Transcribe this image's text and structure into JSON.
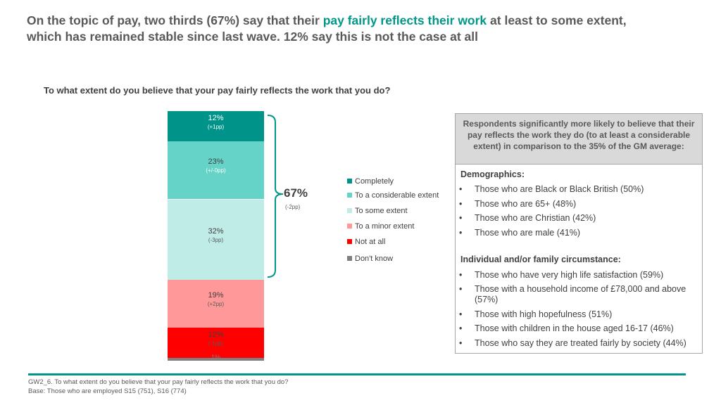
{
  "headline": {
    "part1": "On the topic of pay, two thirds (67%) say that their ",
    "highlight": "pay fairly reflects their work",
    "part2": " at least to some extent,",
    "line2": "which has remained stable since last wave. 12% say this is not the case at all"
  },
  "colors": {
    "completely": "#00938a",
    "considerable": "#66d3c9",
    "some": "#bfece7",
    "minor": "#ff9999",
    "not_at_all": "#ff0000",
    "dont_know": "#7f7f7f",
    "accent": "#009688"
  },
  "chart_data": {
    "type": "bar",
    "stacked": true,
    "title": "To what extent do you believe that your pay fairly reflects the work that you do?",
    "categories": [
      "Completely",
      "To a considerable extent",
      "To some extent",
      "To a minor extent",
      "Not at all",
      "Don't know"
    ],
    "values": [
      12,
      23,
      32,
      19,
      12,
      1
    ],
    "labels": [
      "12%",
      "23%",
      "32%",
      "19%",
      "12%",
      "1%"
    ],
    "changes": [
      "(+1pp)",
      "(+/-0pp)",
      "(-3pp)",
      "(+2pp)",
      "(-1pp)",
      ""
    ],
    "net": {
      "value": "67%",
      "change": "(-2pp)"
    },
    "ylim": [
      0,
      100
    ],
    "legend_position": "right"
  },
  "legend": [
    "Completely",
    "To a considerable extent",
    "To some extent",
    "To a minor extent",
    "Not at all",
    "Don't know"
  ],
  "panel": {
    "header": "Respondents significantly more likely to believe that their pay reflects the work they do (to at least a considerable extent) in comparison to the 35% of the GM average:",
    "demographics_title": "Demographics:",
    "demographics": [
      "Those who are Black or Black British (50%)",
      "Those who are 65+ (48%)",
      "Those who are Christian (42%)",
      "Those who are male (41%)"
    ],
    "circumstance_title": "Individual and/or family circumstance:",
    "circumstance": [
      "Those who have very high life satisfaction (59%)",
      "Those with a household income of £78,000 and above (57%)",
      "Those with high hopefulness (51%)",
      "Those with children in the house aged 16-17 (46%)",
      "Those who say they are treated fairly by society (44%)"
    ]
  },
  "footnote": {
    "line1": "GW2_6. To what extent do you believe that your pay fairly reflects the work that you do?",
    "line2": "Base: Those who are employed S15 (751), S16 (774)"
  }
}
